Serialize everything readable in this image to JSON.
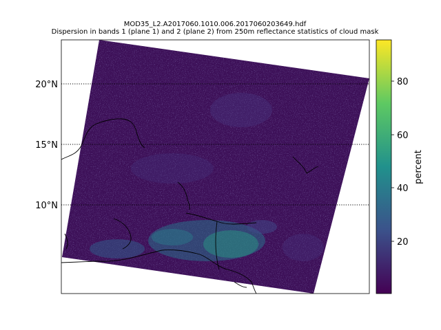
{
  "figure": {
    "title_line1": "MOD35_L2.A2017060.1010.006.2017060203649.hdf",
    "title_line2": "Dispersion in bands 1 (plane 1) and 2 (plane 2) from 250m reflectance  statistics of cloud mask"
  },
  "map": {
    "latitude_labels": [
      "20°N",
      "15°N",
      "10°N"
    ],
    "gridline_style": "dotted",
    "background_color": "#3b0d56"
  },
  "colorbar": {
    "label": "percent",
    "ticks": [
      "20",
      "40",
      "60",
      "80"
    ],
    "colormap": "viridis",
    "colors": [
      "#440154",
      "#3b528b",
      "#21918c",
      "#5ec962",
      "#fde725"
    ]
  }
}
